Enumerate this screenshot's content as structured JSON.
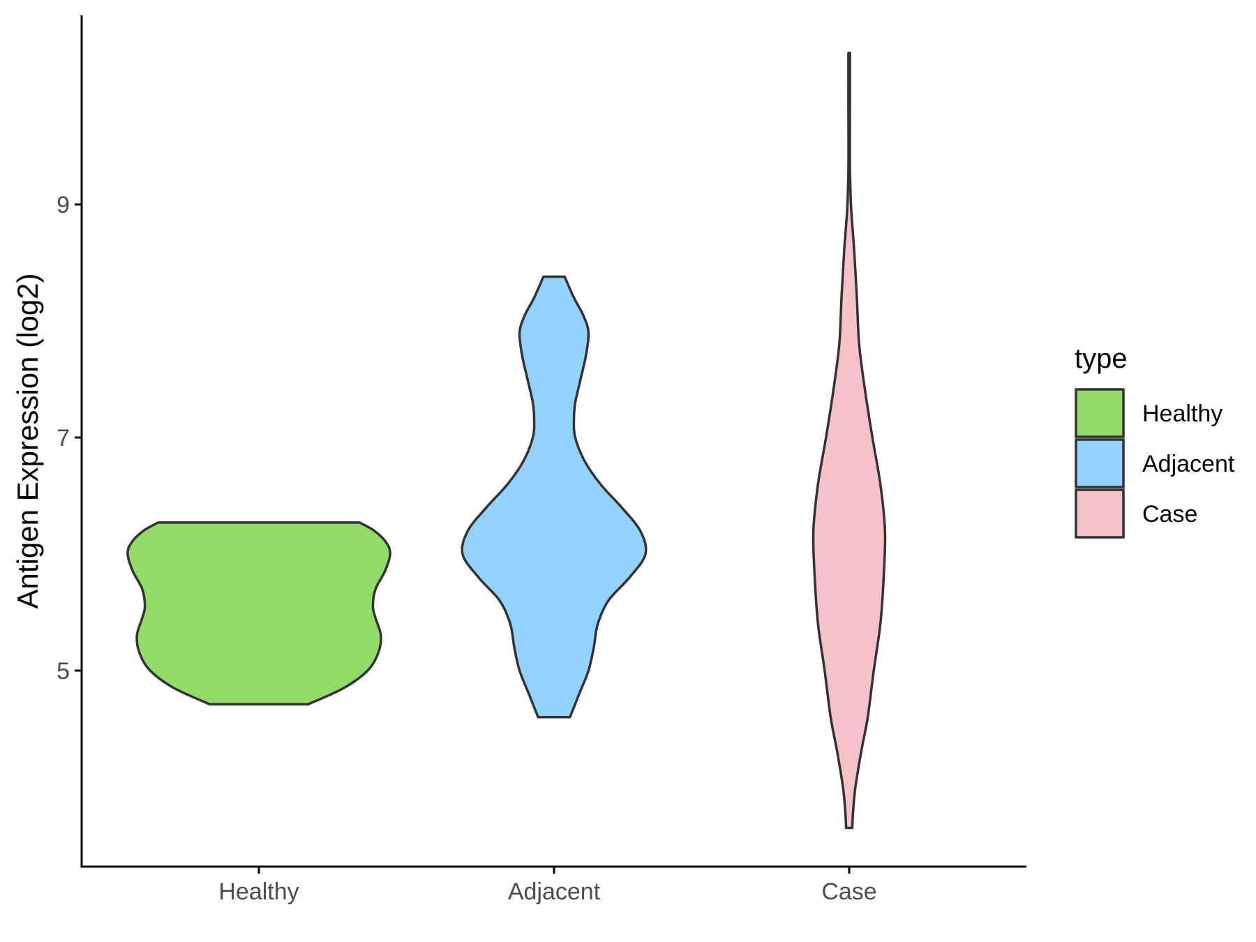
{
  "chart_data": {
    "type": "violin",
    "title": "",
    "xlabel": "",
    "ylabel": "Antigen Expression (log2)",
    "ylim": [
      3.4,
      10.7
    ],
    "y_ticks": [
      5,
      7,
      9
    ],
    "categories": [
      "Healthy",
      "Adjacent",
      "Case"
    ],
    "legend": {
      "title": "type",
      "position": "right",
      "entries": [
        "Healthy",
        "Adjacent",
        "Case"
      ]
    },
    "grid": false,
    "series": [
      {
        "name": "Healthy",
        "color": "#92DC6A",
        "min": 4.71,
        "max": 6.27,
        "profile": [
          [
            4.71,
            0.37
          ],
          [
            4.85,
            0.64
          ],
          [
            5.0,
            0.82
          ],
          [
            5.15,
            0.9
          ],
          [
            5.3,
            0.92
          ],
          [
            5.45,
            0.88
          ],
          [
            5.55,
            0.86
          ],
          [
            5.7,
            0.88
          ],
          [
            5.85,
            0.95
          ],
          [
            6.0,
            0.99
          ],
          [
            6.1,
            0.96
          ],
          [
            6.2,
            0.87
          ],
          [
            6.27,
            0.76
          ]
        ]
      },
      {
        "name": "Adjacent",
        "color": "#92D2FC",
        "min": 4.6,
        "max": 8.38,
        "profile": [
          [
            4.6,
            0.12
          ],
          [
            4.8,
            0.19
          ],
          [
            5.0,
            0.26
          ],
          [
            5.2,
            0.3
          ],
          [
            5.4,
            0.33
          ],
          [
            5.6,
            0.41
          ],
          [
            5.8,
            0.57
          ],
          [
            6.0,
            0.69
          ],
          [
            6.2,
            0.65
          ],
          [
            6.4,
            0.51
          ],
          [
            6.6,
            0.35
          ],
          [
            6.8,
            0.23
          ],
          [
            7.0,
            0.16
          ],
          [
            7.15,
            0.15
          ],
          [
            7.3,
            0.16
          ],
          [
            7.5,
            0.2
          ],
          [
            7.7,
            0.24
          ],
          [
            7.9,
            0.26
          ],
          [
            8.05,
            0.22
          ],
          [
            8.2,
            0.15
          ],
          [
            8.38,
            0.08
          ]
        ]
      },
      {
        "name": "Case",
        "color": "#F7C1CC",
        "min": 3.65,
        "max": 10.3,
        "profile": [
          [
            3.65,
            0.023
          ],
          [
            3.8,
            0.03
          ],
          [
            4.0,
            0.047
          ],
          [
            4.3,
            0.09
          ],
          [
            4.6,
            0.14
          ],
          [
            5.0,
            0.185
          ],
          [
            5.4,
            0.235
          ],
          [
            5.8,
            0.26
          ],
          [
            6.2,
            0.27
          ],
          [
            6.6,
            0.235
          ],
          [
            7.0,
            0.175
          ],
          [
            7.4,
            0.12
          ],
          [
            7.8,
            0.075
          ],
          [
            8.2,
            0.058
          ],
          [
            8.6,
            0.038
          ],
          [
            8.8,
            0.025
          ],
          [
            9.0,
            0.013
          ],
          [
            9.3,
            0.006
          ],
          [
            9.6,
            0.005
          ],
          [
            9.9,
            0.006
          ],
          [
            10.1,
            0.006
          ],
          [
            10.3,
            0.006
          ]
        ]
      }
    ]
  }
}
